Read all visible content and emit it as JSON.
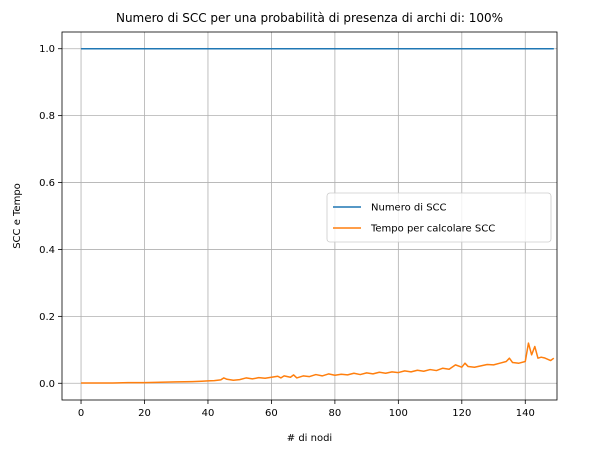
{
  "chart_data": {
    "type": "line",
    "title": "Numero di SCC per una probabilità di presenza di archi di: 100%",
    "xlabel": "#  di nodi",
    "ylabel": "SCC e Tempo",
    "xlim": [
      -6,
      150
    ],
    "ylim": [
      -0.05,
      1.05
    ],
    "xticks": [
      0,
      20,
      40,
      60,
      80,
      100,
      120,
      140
    ],
    "xtick_labels": [
      "0",
      "20",
      "40",
      "60",
      "80",
      "100",
      "120",
      "140"
    ],
    "yticks": [
      0.0,
      0.2,
      0.4,
      0.6,
      0.8,
      1.0
    ],
    "ytick_labels": [
      "0.0",
      "0.2",
      "0.4",
      "0.6",
      "0.8",
      "1.0"
    ],
    "grid": true,
    "legend_position": "center-right",
    "series": [
      {
        "name": "Numero di SCC",
        "color": "#1f77b4",
        "x": [
          0,
          149
        ],
        "y": [
          1.0,
          1.0
        ]
      },
      {
        "name": "Tempo per calcolare SCC",
        "color": "#ff7f0e",
        "x": [
          0,
          5,
          10,
          15,
          20,
          25,
          30,
          35,
          38,
          40,
          42,
          44,
          45,
          46,
          48,
          50,
          52,
          54,
          56,
          58,
          60,
          62,
          63,
          64,
          66,
          67,
          68,
          70,
          72,
          74,
          76,
          78,
          80,
          82,
          84,
          86,
          88,
          90,
          92,
          94,
          96,
          98,
          100,
          102,
          104,
          106,
          108,
          110,
          112,
          114,
          116,
          118,
          120,
          121,
          122,
          124,
          126,
          128,
          130,
          132,
          134,
          135,
          136,
          138,
          140,
          141,
          142,
          143,
          144,
          145,
          146,
          148,
          149
        ],
        "y": [
          0.001,
          0.001,
          0.001,
          0.002,
          0.002,
          0.003,
          0.004,
          0.005,
          0.006,
          0.007,
          0.008,
          0.01,
          0.016,
          0.012,
          0.009,
          0.011,
          0.016,
          0.013,
          0.017,
          0.015,
          0.018,
          0.021,
          0.016,
          0.022,
          0.018,
          0.025,
          0.016,
          0.022,
          0.02,
          0.026,
          0.022,
          0.028,
          0.024,
          0.027,
          0.025,
          0.03,
          0.026,
          0.031,
          0.028,
          0.033,
          0.03,
          0.034,
          0.032,
          0.037,
          0.034,
          0.039,
          0.036,
          0.041,
          0.038,
          0.045,
          0.042,
          0.055,
          0.048,
          0.06,
          0.05,
          0.048,
          0.052,
          0.056,
          0.055,
          0.06,
          0.065,
          0.075,
          0.062,
          0.06,
          0.065,
          0.12,
          0.085,
          0.11,
          0.075,
          0.078,
          0.076,
          0.068,
          0.075
        ]
      }
    ]
  }
}
